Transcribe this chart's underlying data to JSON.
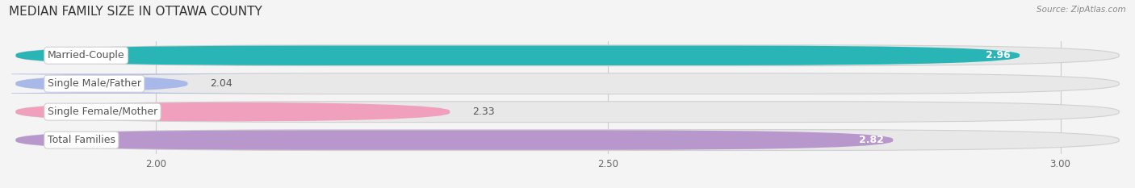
{
  "title": "MEDIAN FAMILY SIZE IN OTTAWA COUNTY",
  "source": "Source: ZipAtlas.com",
  "categories": [
    "Married-Couple",
    "Single Male/Father",
    "Single Female/Mother",
    "Total Families"
  ],
  "values": [
    2.96,
    2.04,
    2.33,
    2.82
  ],
  "bar_colors": [
    "#29b5b5",
    "#a8b8e8",
    "#f0a0bc",
    "#b898cc"
  ],
  "xlim_min": 1.84,
  "xlim_max": 3.07,
  "xticks": [
    2.0,
    2.5,
    3.0
  ],
  "label_fontsize": 9,
  "value_fontsize": 9,
  "title_fontsize": 11,
  "page_bg": "#f4f4f4",
  "track_color": "#e0e0e0",
  "row_gap_color": "#f4f4f4"
}
